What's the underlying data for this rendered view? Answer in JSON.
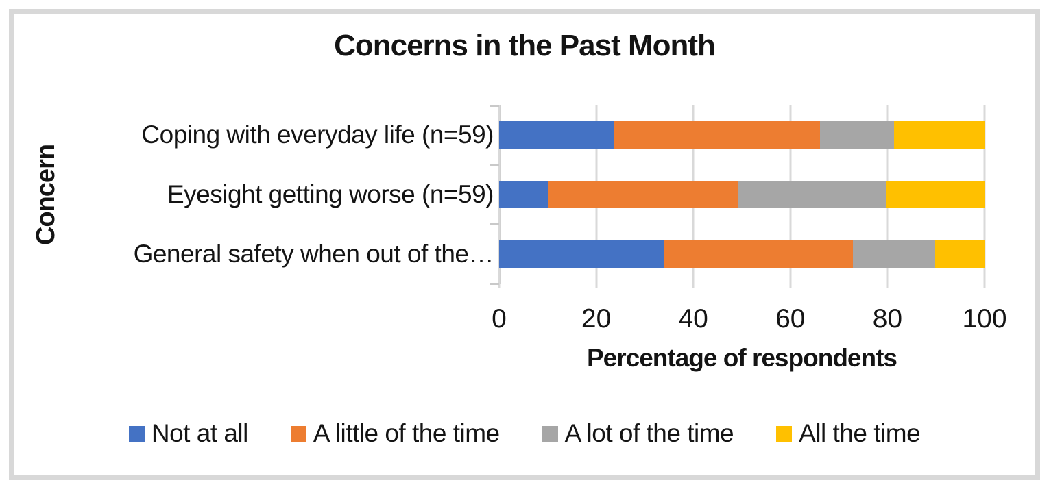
{
  "chart_data": {
    "type": "bar",
    "variant": "horizontal-stacked",
    "title": "Concerns in the Past Month",
    "xlabel": "Percentage of respondents",
    "ylabel": "Concern",
    "xlim": [
      0,
      100
    ],
    "xticks": [
      0,
      20,
      40,
      60,
      80,
      100
    ],
    "grid": true,
    "legend_position": "bottom",
    "categories": [
      "Coping with everyday life (n=59)",
      "Eyesight getting worse (n=59)",
      "General safety when out of the…"
    ],
    "series": [
      {
        "name": "Not at all",
        "color": "#4472C4",
        "values": [
          23.7,
          10.2,
          33.9
        ]
      },
      {
        "name": "A little of the time",
        "color": "#ED7D31",
        "values": [
          42.4,
          39.0,
          39.0
        ]
      },
      {
        "name": "A lot of the time",
        "color": "#A6A6A6",
        "values": [
          15.3,
          30.5,
          16.9
        ]
      },
      {
        "name": "All the time",
        "color": "#FFC000",
        "values": [
          18.6,
          20.3,
          10.2
        ]
      }
    ],
    "colors": {
      "gridline": "#D9D9D9",
      "axis": "#C9C9C9",
      "frame_border": "#D8D8D8",
      "text": "#141414"
    }
  }
}
